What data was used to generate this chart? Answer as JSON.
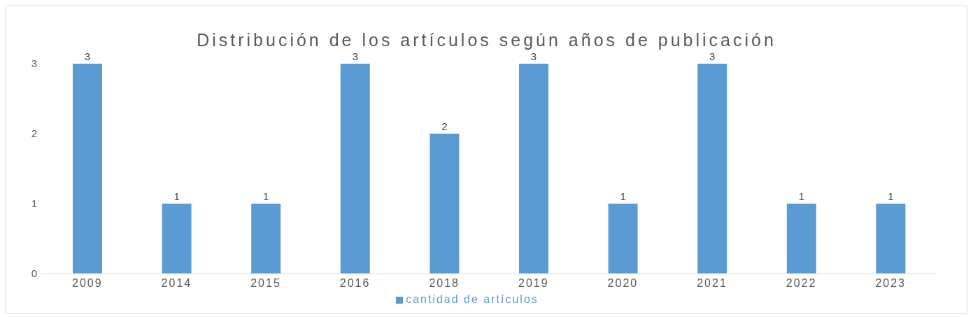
{
  "chart_data": {
    "type": "bar",
    "title": "Distribución de los artículos según años de publicación",
    "categories": [
      "2009",
      "2014",
      "2015",
      "2016",
      "2018",
      "2019",
      "2020",
      "2021",
      "2022",
      "2023"
    ],
    "series": [
      {
        "name": "cantidad de artículos",
        "color": "#5b9bd5",
        "values": [
          3,
          1,
          1,
          3,
          2,
          3,
          1,
          3,
          1,
          1
        ]
      }
    ],
    "ylim": [
      0,
      3
    ],
    "yticks": [
      0,
      1,
      2,
      3
    ],
    "grid": false,
    "legend": "bottom",
    "data_labels": true
  }
}
